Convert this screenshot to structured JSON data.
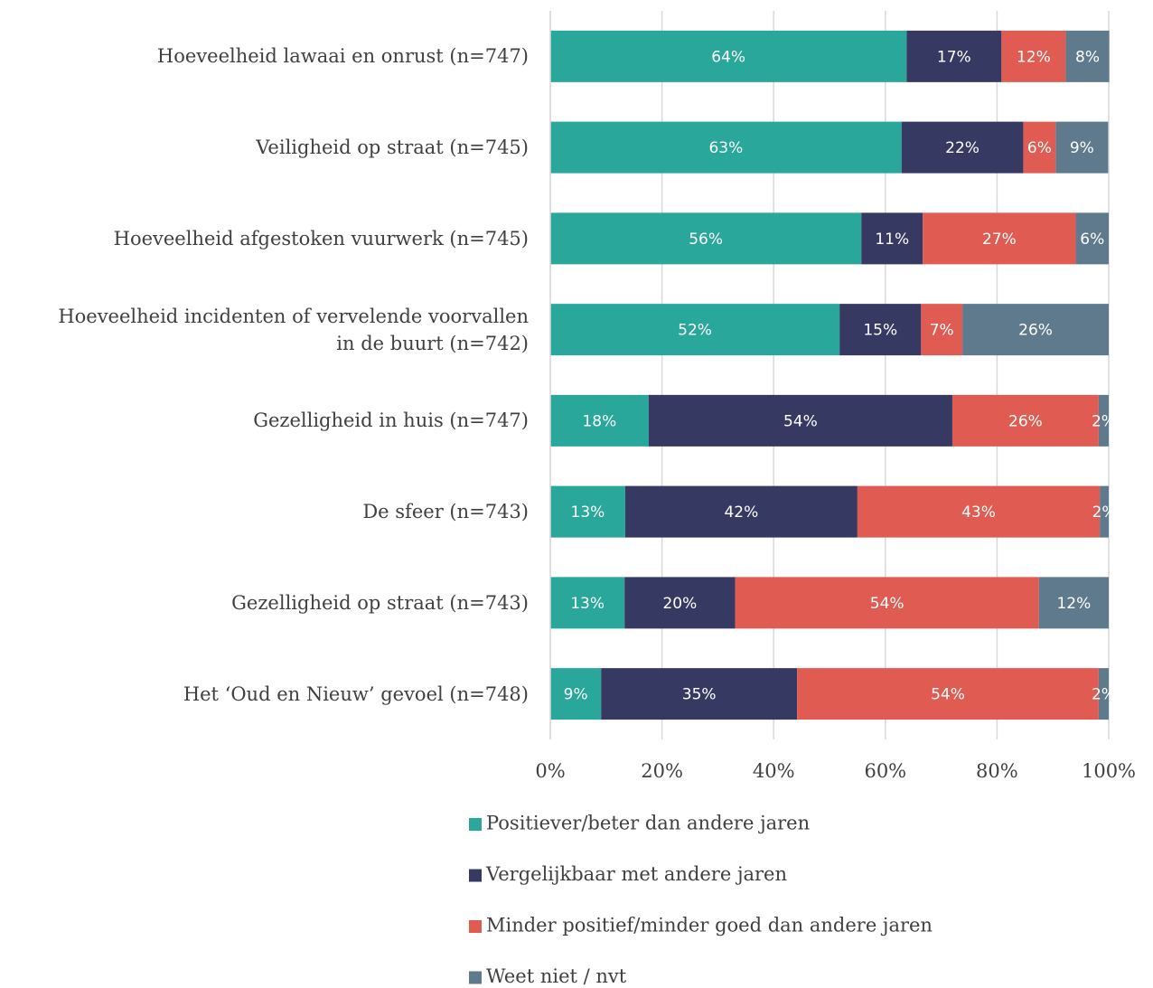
{
  "chart_data": {
    "type": "bar",
    "orientation": "horizontal",
    "stacked": true,
    "categories": [
      "Hoeveelheid lawaai en onrust (n=747)",
      "Veiligheid op straat (n=745)",
      "Hoeveelheid afgestoken vuurwerk (n=745)",
      "Hoeveelheid incidenten of vervelende voorvallen\nin de buurt (n=742)",
      "Gezelligheid in huis (n=747)",
      "De sfeer (n=743)",
      "Gezelligheid op straat (n=743)",
      "Het ‘Oud en Nieuw’ gevoel (n=748)"
    ],
    "series": [
      {
        "name": "Positiever/beter dan andere jaren",
        "color": "#2aa79b",
        "values": [
          63.8,
          62.9,
          55.7,
          51.8,
          17.6,
          13.4,
          13.3,
          9.1
        ],
        "value_labels": [
          "64%",
          "63%",
          "56%",
          "52%",
          "18%",
          "13%",
          "13%",
          "9%"
        ]
      },
      {
        "name": "Vergelijkbaar met andere jaren",
        "color": "#363a63",
        "values": [
          17.0,
          21.8,
          11.0,
          14.6,
          54.4,
          41.6,
          19.8,
          35.1
        ],
        "value_labels": [
          "17%",
          "22%",
          "11%",
          "15%",
          "54%",
          "42%",
          "20%",
          "35%"
        ]
      },
      {
        "name": "Minder positief/minder goed dan andere jaren",
        "color": "#e05c52",
        "values": [
          11.5,
          5.8,
          27.4,
          7.4,
          26.2,
          43.4,
          54.4,
          54.0
        ],
        "value_labels": [
          "12%",
          "6%",
          "27%",
          "7%",
          "26%",
          "43%",
          "54%",
          "54%"
        ]
      },
      {
        "name": "Weet niet / nvt",
        "color": "#5f7a8c",
        "values": [
          7.8,
          9.4,
          5.9,
          26.2,
          1.8,
          1.6,
          12.5,
          1.8
        ],
        "value_labels": [
          "8%",
          "9%",
          "6%",
          "26%",
          "2%",
          "2%",
          "12%",
          "2%"
        ]
      }
    ],
    "xlim": [
      0,
      100
    ],
    "xticks": [
      {
        "value": 0,
        "label": "0%"
      },
      {
        "value": 20,
        "label": "20%"
      },
      {
        "value": 40,
        "label": "40%"
      },
      {
        "value": 60,
        "label": "60%"
      },
      {
        "value": 80,
        "label": "80%"
      },
      {
        "value": 100,
        "label": "100%"
      }
    ],
    "grid": true,
    "legend": "bottom"
  }
}
